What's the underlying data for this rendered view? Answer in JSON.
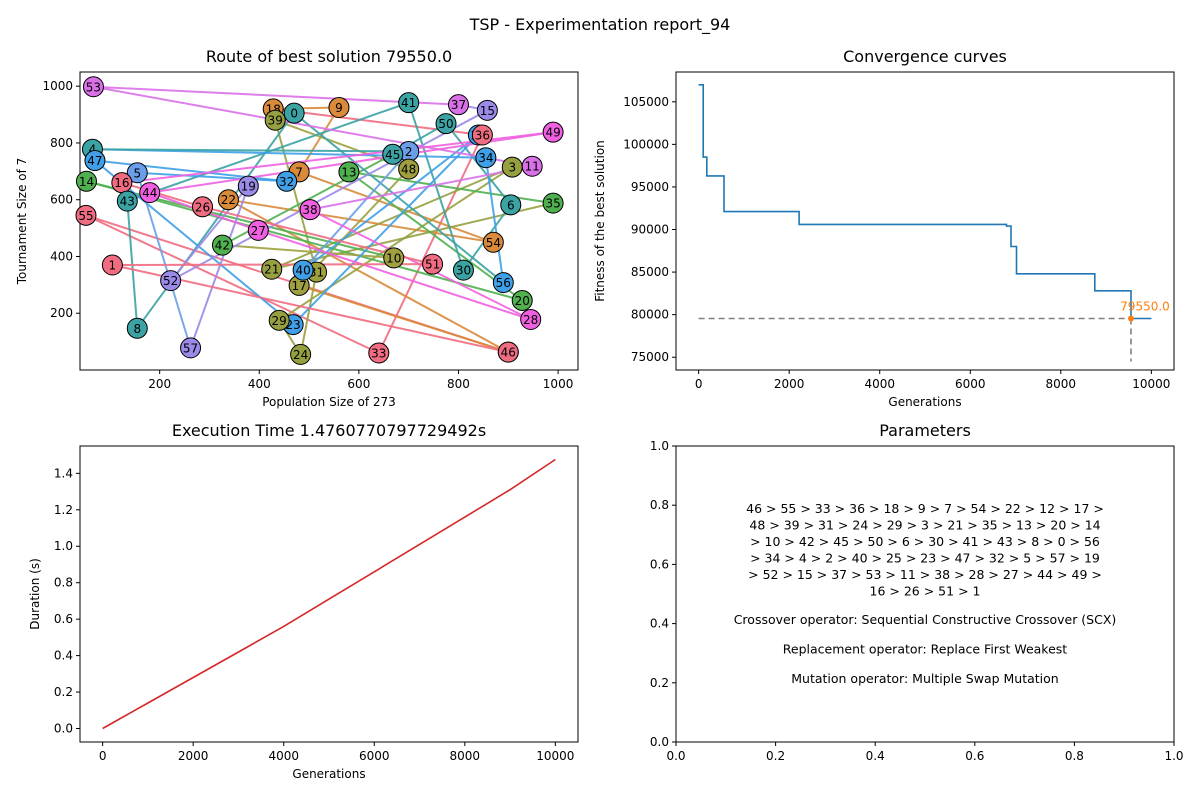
{
  "suptitle": "TSP - Experimentation report_94",
  "colors": {
    "convergence_line": "#1f77b4",
    "best_marker": "#ff7f0e",
    "guide_line": "#808080",
    "duration_line": "#d62728"
  },
  "chart_data": [
    {
      "type": "line",
      "subplot": "top-left",
      "title": "Route of best solution 79550.0",
      "xlabel": "Population Size of 273",
      "ylabel": "Tournament Size of 7",
      "xlim": [
        40,
        1040
      ],
      "ylim": [
        0,
        1050
      ],
      "xticks": [
        200,
        400,
        600,
        800,
        1000
      ],
      "yticks": [
        200,
        400,
        600,
        800,
        1000
      ],
      "cities": [
        {
          "id": 0,
          "x": 470,
          "y": 905,
          "color": "#3ba3a3"
        },
        {
          "id": 1,
          "x": 105,
          "y": 370,
          "color": "#f06c80"
        },
        {
          "id": 2,
          "x": 700,
          "y": 770,
          "color": "#6a9ee8"
        },
        {
          "id": 3,
          "x": 908,
          "y": 715,
          "color": "#96a040"
        },
        {
          "id": 4,
          "x": 65,
          "y": 778,
          "color": "#3ba3a3"
        },
        {
          "id": 5,
          "x": 155,
          "y": 695,
          "color": "#6a9ee8"
        },
        {
          "id": 6,
          "x": 905,
          "y": 582,
          "color": "#3ba3a3"
        },
        {
          "id": 7,
          "x": 480,
          "y": 698,
          "color": "#d98a3a"
        },
        {
          "id": 8,
          "x": 155,
          "y": 147,
          "color": "#3ba3a3"
        },
        {
          "id": 9,
          "x": 560,
          "y": 925,
          "color": "#d98a3a"
        },
        {
          "id": 10,
          "x": 670,
          "y": 395,
          "color": "#a0a040"
        },
        {
          "id": 11,
          "x": 948,
          "y": 718,
          "color": "#d970e8"
        },
        {
          "id": 12,
          "x": 900,
          "y": 63,
          "color": "#d98a3a"
        },
        {
          "id": 13,
          "x": 580,
          "y": 698,
          "color": "#50b050"
        },
        {
          "id": 14,
          "x": 53,
          "y": 665,
          "color": "#50b050"
        },
        {
          "id": 15,
          "x": 858,
          "y": 915,
          "color": "#9b8ae8"
        },
        {
          "id": 16,
          "x": 124,
          "y": 660,
          "color": "#f06c80"
        },
        {
          "id": 17,
          "x": 480,
          "y": 298,
          "color": "#a0a040"
        },
        {
          "id": 18,
          "x": 428,
          "y": 920,
          "color": "#d98a3a"
        },
        {
          "id": 19,
          "x": 378,
          "y": 648,
          "color": "#9b8ae8"
        },
        {
          "id": 20,
          "x": 928,
          "y": 245,
          "color": "#50b050"
        },
        {
          "id": 21,
          "x": 425,
          "y": 355,
          "color": "#96a040"
        },
        {
          "id": 22,
          "x": 338,
          "y": 600,
          "color": "#d98a3a"
        },
        {
          "id": 23,
          "x": 468,
          "y": 160,
          "color": "#3fa0e8"
        },
        {
          "id": 24,
          "x": 483,
          "y": 55,
          "color": "#96a040"
        },
        {
          "id": 25,
          "x": 840,
          "y": 828,
          "color": "#3fa0e8"
        },
        {
          "id": 26,
          "x": 286,
          "y": 575,
          "color": "#f06c80"
        },
        {
          "id": 27,
          "x": 398,
          "y": 492,
          "color": "#f060e0"
        },
        {
          "id": 28,
          "x": 945,
          "y": 178,
          "color": "#f060e0"
        },
        {
          "id": 29,
          "x": 440,
          "y": 175,
          "color": "#96a040"
        },
        {
          "id": 30,
          "x": 810,
          "y": 352,
          "color": "#3ba3a3"
        },
        {
          "id": 31,
          "x": 515,
          "y": 345,
          "color": "#a0a040"
        },
        {
          "id": 32,
          "x": 455,
          "y": 665,
          "color": "#3fa0e8"
        },
        {
          "id": 33,
          "x": 640,
          "y": 60,
          "color": "#f06c80"
        },
        {
          "id": 34,
          "x": 855,
          "y": 748,
          "color": "#3fa0e8"
        },
        {
          "id": 35,
          "x": 990,
          "y": 588,
          "color": "#50b050"
        },
        {
          "id": 36,
          "x": 848,
          "y": 828,
          "color": "#f06c80"
        },
        {
          "id": 37,
          "x": 800,
          "y": 935,
          "color": "#d970e8"
        },
        {
          "id": 38,
          "x": 502,
          "y": 565,
          "color": "#f060e0"
        },
        {
          "id": 39,
          "x": 432,
          "y": 880,
          "color": "#96a040"
        },
        {
          "id": 40,
          "x": 488,
          "y": 352,
          "color": "#3fa0e8"
        },
        {
          "id": 41,
          "x": 700,
          "y": 942,
          "color": "#3ba3a3"
        },
        {
          "id": 42,
          "x": 326,
          "y": 440,
          "color": "#50b050"
        },
        {
          "id": 43,
          "x": 135,
          "y": 595,
          "color": "#3ba3a3"
        },
        {
          "id": 44,
          "x": 180,
          "y": 625,
          "color": "#f060e0"
        },
        {
          "id": 45,
          "x": 668,
          "y": 760,
          "color": "#3ba3a3"
        },
        {
          "id": 46,
          "x": 900,
          "y": 63,
          "color": "#f06c80"
        },
        {
          "id": 47,
          "x": 70,
          "y": 738,
          "color": "#3fa0e8"
        },
        {
          "id": 48,
          "x": 700,
          "y": 708,
          "color": "#a0a040"
        },
        {
          "id": 49,
          "x": 990,
          "y": 838,
          "color": "#f060e0"
        },
        {
          "id": 50,
          "x": 775,
          "y": 868,
          "color": "#3ba3a3"
        },
        {
          "id": 51,
          "x": 748,
          "y": 373,
          "color": "#f06c80"
        },
        {
          "id": 52,
          "x": 222,
          "y": 315,
          "color": "#9b8ae8"
        },
        {
          "id": 53,
          "x": 67,
          "y": 998,
          "color": "#d970e8"
        },
        {
          "id": 54,
          "x": 870,
          "y": 450,
          "color": "#d98a3a"
        },
        {
          "id": 55,
          "x": 52,
          "y": 545,
          "color": "#f06c80"
        },
        {
          "id": 56,
          "x": 890,
          "y": 308,
          "color": "#3fa0e8"
        },
        {
          "id": 57,
          "x": 262,
          "y": 78,
          "color": "#9b8ae8"
        }
      ],
      "route": [
        46,
        55,
        33,
        36,
        18,
        9,
        7,
        54,
        22,
        12,
        17,
        48,
        39,
        31,
        24,
        29,
        3,
        21,
        35,
        13,
        20,
        14,
        10,
        42,
        45,
        50,
        6,
        30,
        41,
        43,
        8,
        0,
        56,
        34,
        4,
        2,
        40,
        25,
        23,
        47,
        32,
        5,
        57,
        19,
        52,
        15,
        37,
        53,
        11,
        38,
        28,
        27,
        44,
        49,
        16,
        26,
        51,
        1
      ]
    },
    {
      "type": "line",
      "subplot": "top-right",
      "title": "Convergence curves",
      "xlabel": "Generations",
      "ylabel": "Fitness of the best solution",
      "xlim": [
        -500,
        10500
      ],
      "ylim": [
        73500,
        108500
      ],
      "xticks": [
        0,
        2000,
        4000,
        6000,
        8000,
        10000
      ],
      "yticks": [
        75000,
        80000,
        85000,
        90000,
        95000,
        100000,
        105000
      ],
      "series": [
        {
          "step": true,
          "x": [
            0,
            100,
            100,
            180,
            180,
            560,
            560,
            2220,
            2220,
            6800,
            6800,
            6900,
            6900,
            7020,
            7020,
            8750,
            8750,
            9550,
            9550,
            10000
          ],
          "y": [
            107000,
            107000,
            98500,
            98500,
            96300,
            96300,
            92100,
            92100,
            90600,
            90600,
            90400,
            90400,
            88000,
            88000,
            84800,
            84800,
            82800,
            82800,
            79550,
            79550
          ]
        }
      ],
      "best": {
        "x": 9550,
        "y": 79550,
        "label": "79550.0"
      },
      "guide_bottom": 74500
    },
    {
      "type": "line",
      "subplot": "bottom-left",
      "title": "Execution Time 1.4760770797729492s",
      "xlabel": "Generations",
      "ylabel": "Duration (s)",
      "xlim": [
        -500,
        10500
      ],
      "ylim": [
        -0.074,
        1.55
      ],
      "xticks": [
        0,
        2000,
        4000,
        6000,
        8000,
        10000
      ],
      "yticks": [
        0.0,
        0.2,
        0.4,
        0.6,
        0.8,
        1.0,
        1.2,
        1.4
      ],
      "yticklabels": [
        "0.0",
        "0.2",
        "0.4",
        "0.6",
        "0.8",
        "1.0",
        "1.2",
        "1.4"
      ],
      "series": [
        {
          "x": [
            0,
            1000,
            2000,
            3000,
            4000,
            5000,
            6000,
            7000,
            8000,
            9000,
            10000
          ],
          "y": [
            0.0,
            0.14,
            0.28,
            0.42,
            0.56,
            0.71,
            0.86,
            1.01,
            1.16,
            1.31,
            1.476
          ]
        }
      ]
    },
    {
      "type": "table",
      "subplot": "bottom-right",
      "title": "Parameters",
      "xlim": [
        0,
        1
      ],
      "ylim": [
        0,
        1
      ],
      "xticks": [
        0.0,
        0.2,
        0.4,
        0.6,
        0.8,
        1.0
      ],
      "yticks": [
        0.0,
        0.2,
        0.4,
        0.6,
        0.8,
        1.0
      ],
      "ticklabels": [
        "0.0",
        "0.2",
        "0.4",
        "0.6",
        "0.8",
        "1.0"
      ],
      "route_lines": [
        "46 > 55 > 33 > 36 > 18 > 9 > 7 > 54 > 22 > 12 > 17 >",
        "48 > 39 > 31 > 24 > 29 > 3 > 21 > 35 > 13 > 20 > 14",
        "> 10 > 42 > 45 > 50 > 6 > 30 > 41 > 43 > 8 > 0 > 56",
        "> 34 > 4 > 2 > 40 > 25 > 23 > 47 > 32 > 5 > 57 > 19",
        "> 52 > 15 > 37 > 53 > 11 > 38 > 28 > 27 > 44 > 49 >",
        "16 > 26 > 51 > 1"
      ],
      "operators": [
        "Crossover operator: Sequential Constructive Crossover (SCX)",
        "Replacement operator: Replace First Weakest",
        "Mutation operator: Multiple Swap Mutation"
      ]
    }
  ]
}
